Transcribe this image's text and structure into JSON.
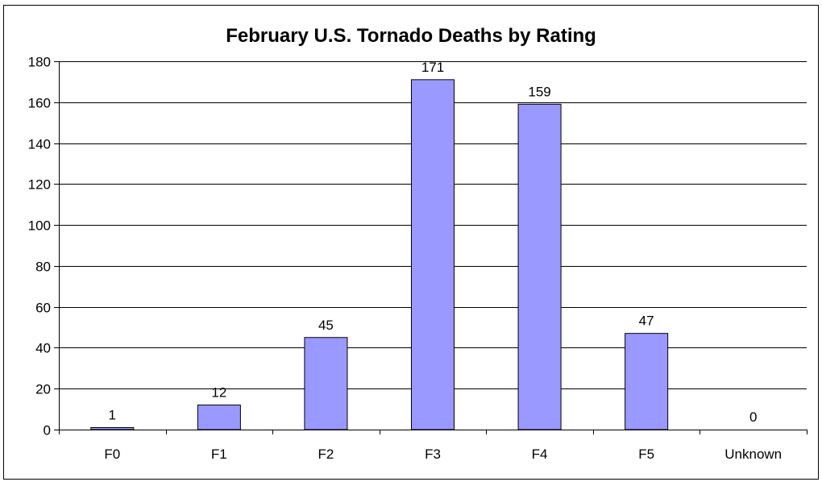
{
  "chart_data": {
    "type": "bar",
    "title": "February U.S. Tornado Deaths by Rating",
    "xlabel": "",
    "ylabel": "",
    "categories": [
      "F0",
      "F1",
      "F2",
      "F3",
      "F4",
      "F5",
      "Unknown"
    ],
    "values": [
      1,
      12,
      45,
      171,
      159,
      47,
      0
    ],
    "data_labels": [
      "1",
      "12",
      "45",
      "171",
      "159",
      "47",
      "0"
    ],
    "ylim": [
      0,
      180
    ],
    "yticks": [
      0,
      20,
      40,
      60,
      80,
      100,
      120,
      140,
      160,
      180
    ],
    "grid": true,
    "bar_color": "#9999ff",
    "bar_edge_color": "#000000"
  }
}
